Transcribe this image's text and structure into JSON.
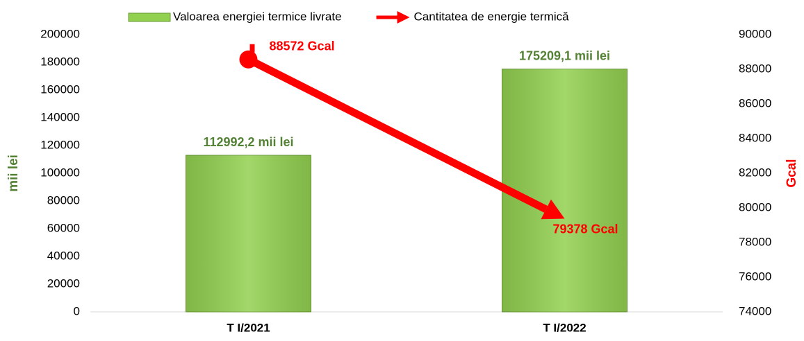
{
  "chart_data": {
    "type": "bar",
    "categories": [
      "T I/2021",
      "T I/2022"
    ],
    "series": [
      {
        "name": "Valoarea energiei termice livrate",
        "type": "bar",
        "color": "#92d050",
        "values": [
          112992.2,
          175209.1
        ],
        "value_labels": [
          "112992,2 mii lei",
          "175209,1 mii lei"
        ]
      },
      {
        "name": "Cantitatea de energie termică",
        "type": "line",
        "axis": "y2",
        "color": "#ff0000",
        "values": [
          88572,
          79378
        ],
        "value_labels": [
          "88572 Gcal",
          "79378 Gcal"
        ]
      }
    ],
    "y_label": "mii lei",
    "y2_label": "Gcal",
    "ylim": [
      0,
      200000
    ],
    "yticks": [
      0,
      20000,
      40000,
      60000,
      80000,
      100000,
      120000,
      140000,
      160000,
      180000,
      200000
    ],
    "y2lim": [
      74000,
      90000
    ],
    "y2ticks": [
      74000,
      76000,
      78000,
      80000,
      82000,
      84000,
      86000,
      88000,
      90000
    ],
    "legend": "top"
  }
}
